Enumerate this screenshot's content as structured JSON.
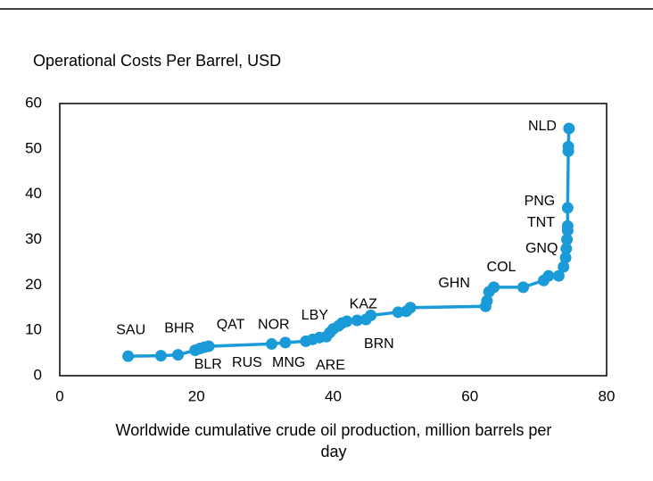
{
  "chart_data": {
    "type": "line",
    "title": "Operational Costs Per Barrel, USD",
    "xlabel": "Worldwide cumulative crude oil production, million barrels per day",
    "color": "#1a9ad6",
    "x": [
      10,
      14.8,
      17.3,
      19.8,
      20.5,
      21.2,
      21.8,
      31,
      33,
      36,
      37,
      38,
      39,
      39.5,
      40,
      40.8,
      41.3,
      42,
      43.5,
      44.8,
      45.5,
      49.5,
      50.7,
      51.3,
      62.3,
      62.5,
      62.8,
      63.5,
      67.8,
      70.8,
      71.5,
      73,
      73.7,
      74,
      74.1,
      74.2,
      74.3,
      74.3,
      74.3,
      74.4,
      74.4,
      74.5
    ],
    "values": [
      4.3,
      4.4,
      4.6,
      5.6,
      6.0,
      6.3,
      6.5,
      7.0,
      7.3,
      7.6,
      8.0,
      8.4,
      8.6,
      9.5,
      10.3,
      11,
      11.6,
      12,
      12.2,
      12.4,
      13.3,
      14,
      14.2,
      15,
      15.3,
      16.5,
      18.5,
      19.5,
      19.5,
      21,
      22,
      22,
      24,
      26,
      28,
      30,
      32,
      33,
      37,
      49.5,
      50.5,
      54.5
    ],
    "annotations": [
      {
        "text": "SAU",
        "x": 10.4,
        "y": 10.0
      },
      {
        "text": "BHR",
        "x": 17.5,
        "y": 10.4
      },
      {
        "text": "QAT",
        "x": 25,
        "y": 11.2
      },
      {
        "text": "NOR",
        "x": 31.3,
        "y": 11.2
      },
      {
        "text": "LBY",
        "x": 37.3,
        "y": 13.2
      },
      {
        "text": "KAZ",
        "x": 44.4,
        "y": 15.7
      },
      {
        "text": "BRN",
        "x": 46.7,
        "y": 6.9
      },
      {
        "text": "BLR",
        "x": 21.7,
        "y": 2.4
      },
      {
        "text": "RUS",
        "x": 27.4,
        "y": 2.8
      },
      {
        "text": "MNG",
        "x": 33.5,
        "y": 2.8
      },
      {
        "text": "ARE",
        "x": 39.6,
        "y": 2.2
      },
      {
        "text": "GHN",
        "x": 57.7,
        "y": 20.3
      },
      {
        "text": "COL",
        "x": 64.6,
        "y": 23.8
      },
      {
        "text": "GNQ",
        "x": 70.5,
        "y": 28
      },
      {
        "text": "TNT",
        "x": 70.4,
        "y": 33.7
      },
      {
        "text": "PNG",
        "x": 70.2,
        "y": 38.4
      },
      {
        "text": "NLD",
        "x": 70.6,
        "y": 54.9
      }
    ],
    "xlim": [
      0,
      80
    ],
    "xticks": [
      0,
      20,
      40,
      60,
      80
    ],
    "ylim": [
      0,
      60
    ],
    "yticks": [
      0,
      10,
      20,
      30,
      40,
      50,
      60
    ],
    "grid": false
  }
}
